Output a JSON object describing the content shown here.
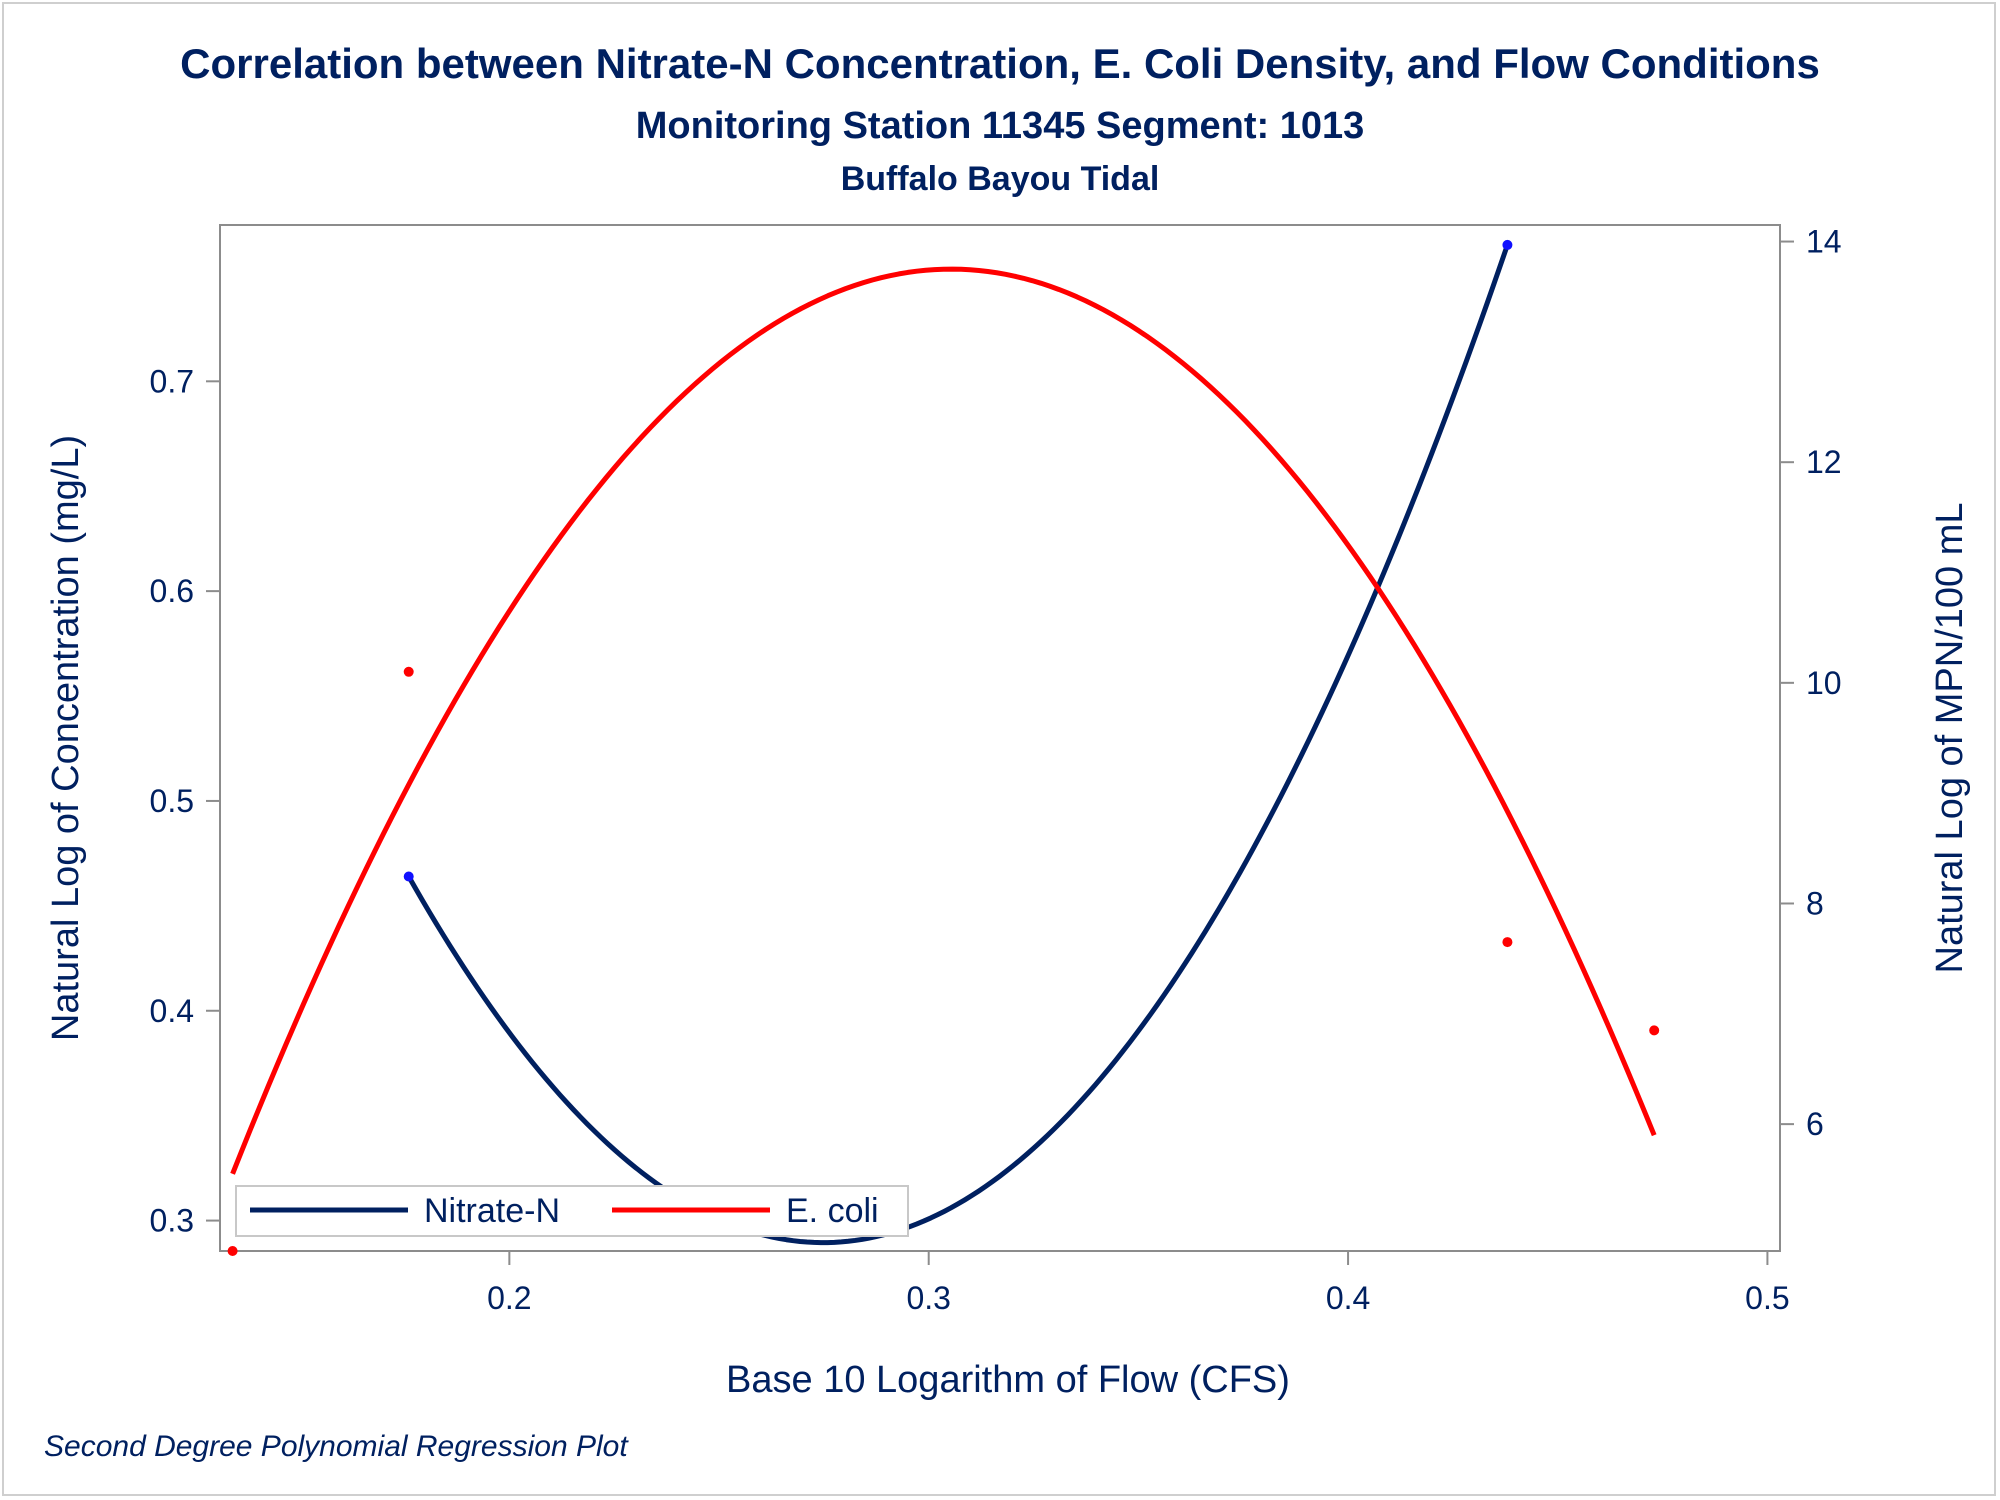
{
  "chart_data": {
    "type": "line",
    "title": "Correlation between Nitrate-N Concentration, E. Coli Density, and Flow Conditions",
    "subtitle": "Monitoring Station 11345 Segment: 1013",
    "subtitle2": "Buffalo Bayou Tidal",
    "footnote": "Second Degree Polynomial Regression Plot",
    "xlabel": "Base 10 Logarithm of Flow (CFS)",
    "ylabel": "Natural Log of Concentration (mg/L)",
    "y2label": "Natural Log of MPN/100 mL",
    "xlim": [
      0.131,
      0.503
    ],
    "ylim": [
      0.2855,
      0.7745
    ],
    "y2lim": [
      4.85,
      14.15
    ],
    "x_ticks": [
      0.2,
      0.3,
      0.4,
      0.5
    ],
    "x_tick_labels": [
      "0.2",
      "0.3",
      "0.4",
      "0.5"
    ],
    "y_ticks": [
      0.3,
      0.4,
      0.5,
      0.6,
      0.7
    ],
    "y_tick_labels": [
      "0.3",
      "0.4",
      "0.5",
      "0.6",
      "0.7"
    ],
    "y2_ticks": [
      6,
      8,
      10,
      12,
      14
    ],
    "y2_tick_labels": [
      "6",
      "8",
      "10",
      "12",
      "14"
    ],
    "grid": false,
    "legend_position": "bottom-left",
    "series": [
      {
        "name": "Nitrate-N",
        "axis": "left",
        "color": "#002060",
        "fit": "quadratic",
        "points": [
          [
            0.176,
            0.464
          ],
          [
            0.438,
            0.765
          ]
        ],
        "curve": [
          [
            0.176,
            0.464
          ],
          [
            0.275,
            0.2895
          ],
          [
            0.438,
            0.765
          ]
        ]
      },
      {
        "name": "E. coli",
        "axis": "right",
        "color": "#ff0000",
        "fit": "quadratic",
        "points": [
          [
            0.134,
            4.85
          ],
          [
            0.176,
            10.1
          ],
          [
            0.438,
            7.65
          ],
          [
            0.473,
            6.85
          ]
        ],
        "curve": [
          [
            0.134,
            5.55
          ],
          [
            0.305,
            13.75
          ],
          [
            0.473,
            5.9
          ]
        ]
      }
    ]
  }
}
